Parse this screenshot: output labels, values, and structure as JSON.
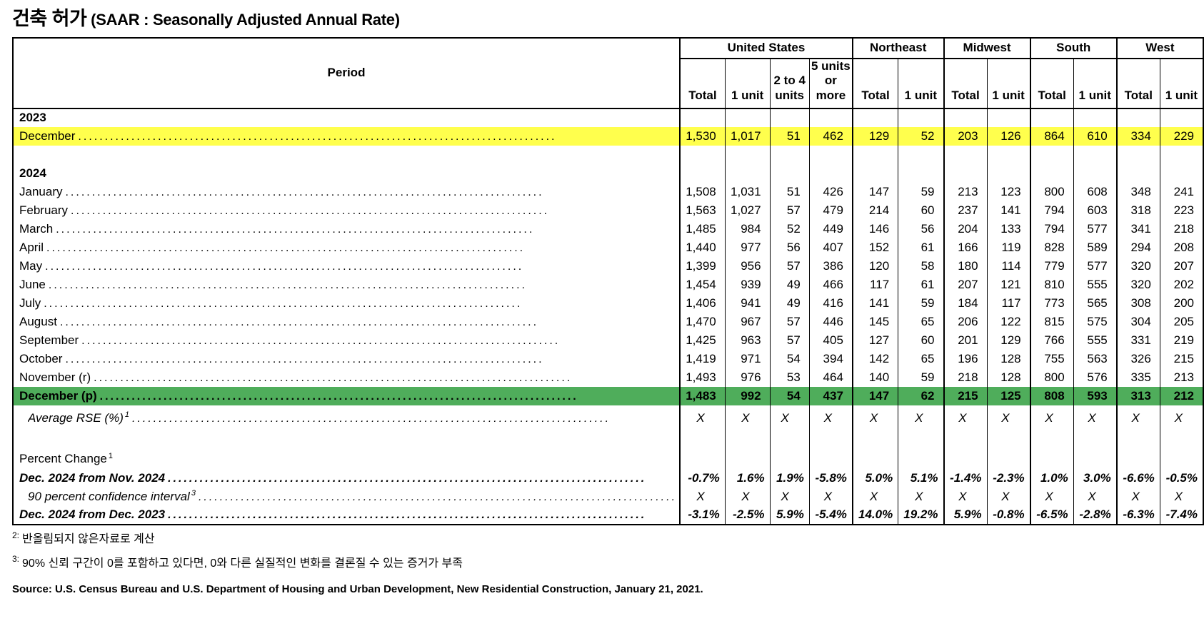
{
  "title_ko": "건축 허가",
  "title_rest": " (SAAR : Seasonally Adjusted Annual Rate)",
  "colors": {
    "highlight_yellow": "#FFFF4D",
    "highlight_green": "#4FAD5B",
    "border": "#000000"
  },
  "table": {
    "period_header": "Period",
    "groups": [
      {
        "label": "United States",
        "columns": [
          "Total",
          "1 unit",
          "2 to 4\nunits",
          "5 units\nor more"
        ]
      },
      {
        "label": "Northeast",
        "columns": [
          "Total",
          "1 unit"
        ]
      },
      {
        "label": "Midwest",
        "columns": [
          "Total",
          "1 unit"
        ]
      },
      {
        "label": "South",
        "columns": [
          "Total",
          "1 unit"
        ]
      },
      {
        "label": "West",
        "columns": [
          "Total",
          "1 unit"
        ]
      }
    ],
    "rows": [
      {
        "type": "year",
        "label": "2023"
      },
      {
        "type": "data",
        "label": "December",
        "leader": true,
        "highlight": "yellow",
        "values": [
          "1,530",
          "1,017",
          "51",
          "462",
          "129",
          "52",
          "203",
          "126",
          "864",
          "610",
          "334",
          "229"
        ]
      },
      {
        "type": "spacer"
      },
      {
        "type": "year",
        "label": "2024"
      },
      {
        "type": "data",
        "label": "January",
        "leader": true,
        "values": [
          "1,508",
          "1,031",
          "51",
          "426",
          "147",
          "59",
          "213",
          "123",
          "800",
          "608",
          "348",
          "241"
        ]
      },
      {
        "type": "data",
        "label": "February",
        "leader": true,
        "values": [
          "1,563",
          "1,027",
          "57",
          "479",
          "214",
          "60",
          "237",
          "141",
          "794",
          "603",
          "318",
          "223"
        ]
      },
      {
        "type": "data",
        "label": "March",
        "leader": true,
        "values": [
          "1,485",
          "984",
          "52",
          "449",
          "146",
          "56",
          "204",
          "133",
          "794",
          "577",
          "341",
          "218"
        ]
      },
      {
        "type": "data",
        "label": "April",
        "leader": true,
        "values": [
          "1,440",
          "977",
          "56",
          "407",
          "152",
          "61",
          "166",
          "119",
          "828",
          "589",
          "294",
          "208"
        ]
      },
      {
        "type": "data",
        "label": "May",
        "leader": true,
        "values": [
          "1,399",
          "956",
          "57",
          "386",
          "120",
          "58",
          "180",
          "114",
          "779",
          "577",
          "320",
          "207"
        ]
      },
      {
        "type": "data",
        "label": "June",
        "leader": true,
        "values": [
          "1,454",
          "939",
          "49",
          "466",
          "117",
          "61",
          "207",
          "121",
          "810",
          "555",
          "320",
          "202"
        ]
      },
      {
        "type": "data",
        "label": "July",
        "leader": true,
        "values": [
          "1,406",
          "941",
          "49",
          "416",
          "141",
          "59",
          "184",
          "117",
          "773",
          "565",
          "308",
          "200"
        ]
      },
      {
        "type": "data",
        "label": "August",
        "leader": true,
        "values": [
          "1,470",
          "967",
          "57",
          "446",
          "145",
          "65",
          "206",
          "122",
          "815",
          "575",
          "304",
          "205"
        ]
      },
      {
        "type": "data",
        "label": "September",
        "leader": true,
        "values": [
          "1,425",
          "963",
          "57",
          "405",
          "127",
          "60",
          "201",
          "129",
          "766",
          "555",
          "331",
          "219"
        ]
      },
      {
        "type": "data",
        "label": "October",
        "leader": true,
        "values": [
          "1,419",
          "971",
          "54",
          "394",
          "142",
          "65",
          "196",
          "128",
          "755",
          "563",
          "326",
          "215"
        ]
      },
      {
        "type": "data",
        "label": "November (r)",
        "leader": true,
        "values": [
          "1,493",
          "976",
          "53",
          "464",
          "140",
          "59",
          "218",
          "128",
          "800",
          "576",
          "335",
          "213"
        ]
      },
      {
        "type": "data",
        "label": "December (p)",
        "leader": true,
        "highlight": "green",
        "bold": true,
        "values": [
          "1,483",
          "992",
          "54",
          "437",
          "147",
          "62",
          "215",
          "125",
          "808",
          "593",
          "313",
          "212"
        ]
      },
      {
        "type": "data",
        "label": "Average RSE (%)",
        "sup": "1",
        "leader": true,
        "italic": true,
        "indent": true,
        "tall": true,
        "values": [
          "X",
          "X",
          "X",
          "X",
          "X",
          "X",
          "X",
          "X",
          "X",
          "X",
          "X",
          "X"
        ]
      },
      {
        "type": "spacer"
      },
      {
        "type": "section",
        "label": "Percent Change",
        "sup": "1"
      },
      {
        "type": "data",
        "label": "Dec. 2024 from Nov. 2024",
        "leader": true,
        "bold": true,
        "italic": true,
        "values": [
          "-0.7%",
          "1.6%",
          "1.9%",
          "-5.8%",
          "5.0%",
          "5.1%",
          "-1.4%",
          "-2.3%",
          "1.0%",
          "3.0%",
          "-6.6%",
          "-0.5%"
        ]
      },
      {
        "type": "data",
        "label": "90 percent confidence interval",
        "sup": "3",
        "leader": true,
        "italic": true,
        "indent": true,
        "values": [
          "X",
          "X",
          "X",
          "X",
          "X",
          "X",
          "X",
          "X",
          "X",
          "X",
          "X",
          "X"
        ]
      },
      {
        "type": "data",
        "label": "Dec. 2024 from Dec. 2023",
        "leader": true,
        "bold": true,
        "italic": true,
        "values": [
          "-3.1%",
          "-2.5%",
          "5.9%",
          "-5.4%",
          "14.0%",
          "19.2%",
          "5.9%",
          "-0.8%",
          "-6.5%",
          "-2.8%",
          "-6.3%",
          "-7.4%"
        ]
      }
    ]
  },
  "footnotes": [
    {
      "marker": "2:",
      "text": "반올림되지 않은자료로 계산"
    },
    {
      "marker": "3:",
      "text": "90% 신뢰 구간이 0를 포함하고 있다면, 0와 다른 실질적인 변화를 결론질 수 있는 증거가 부족"
    }
  ],
  "source": "Source: U.S. Census Bureau and U.S. Department of Housing and Urban Development, New Residential Construction, January 21, 2021."
}
